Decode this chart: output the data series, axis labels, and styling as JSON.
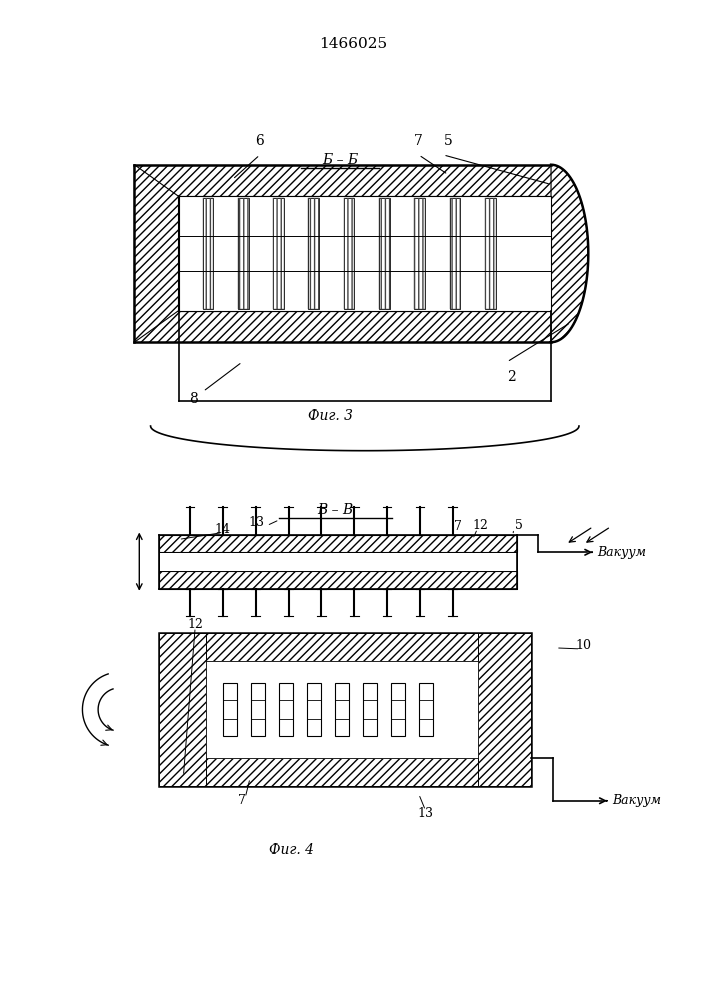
{
  "title_text": "1466025",
  "fig3_label": "Фиг. 3",
  "fig4_label": "Фиг. 4",
  "section_label_fig3": "Б – Б",
  "section_label_fig4": "В – В",
  "vakuum_label": "Вакуум",
  "bg_color": "#ffffff",
  "line_color": "#000000"
}
